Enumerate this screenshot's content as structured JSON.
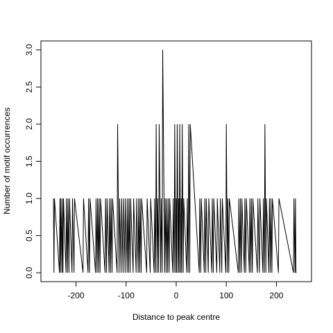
{
  "chart_data": {
    "type": "line",
    "title": "",
    "xlabel": "Distance to peak centre",
    "ylabel": "Number of motif occurrences",
    "xlim": [
      -250,
      250
    ],
    "ylim": [
      0,
      3
    ],
    "x_ticks": [
      -200,
      -100,
      0,
      100,
      200
    ],
    "x_tick_labels": [
      "-200",
      "-100",
      "0",
      "100",
      "200"
    ],
    "y_ticks": [
      0.0,
      0.5,
      1.0,
      1.5,
      2.0,
      2.5,
      3.0
    ],
    "y_tick_labels": [
      "0.0",
      "0.5",
      "1.0",
      "1.5",
      "2.0",
      "2.5",
      "3.0"
    ],
    "grid": false,
    "legend": "none",
    "line_color": "#000000",
    "series": [
      {
        "x_range": [
          -245,
          240
        ],
        "nonzero": [
          [
            -245,
            1
          ],
          [
            -243,
            1
          ],
          [
            -232,
            1
          ],
          [
            -230,
            1
          ],
          [
            -227,
            1
          ],
          [
            -225,
            1
          ],
          [
            -219,
            1
          ],
          [
            -216,
            1
          ],
          [
            -213,
            1
          ],
          [
            -207,
            1
          ],
          [
            -203,
            1
          ],
          [
            -185,
            1
          ],
          [
            -175,
            1
          ],
          [
            -172,
            1
          ],
          [
            -160,
            1
          ],
          [
            -157,
            1
          ],
          [
            -154,
            1
          ],
          [
            -151,
            1
          ],
          [
            -141,
            1
          ],
          [
            -138,
            1
          ],
          [
            -133,
            1
          ],
          [
            -130,
            1
          ],
          [
            -127,
            1
          ],
          [
            -117,
            2
          ],
          [
            -113,
            1
          ],
          [
            -109,
            1
          ],
          [
            -105,
            1
          ],
          [
            -101,
            1
          ],
          [
            -97,
            1
          ],
          [
            -94,
            1
          ],
          [
            -91,
            1
          ],
          [
            -85,
            1
          ],
          [
            -79,
            1
          ],
          [
            -75,
            1
          ],
          [
            -72,
            1
          ],
          [
            -69,
            1
          ],
          [
            -58,
            1
          ],
          [
            -51,
            1
          ],
          [
            -43,
            1
          ],
          [
            -40,
            2
          ],
          [
            -37,
            1
          ],
          [
            -34,
            2
          ],
          [
            -30,
            1
          ],
          [
            -27,
            3
          ],
          [
            -22,
            1
          ],
          [
            -19,
            1
          ],
          [
            -16,
            1
          ],
          [
            -13,
            1
          ],
          [
            -6,
            1
          ],
          [
            -3,
            2
          ],
          [
            0,
            1
          ],
          [
            2,
            2
          ],
          [
            5,
            1
          ],
          [
            7,
            2
          ],
          [
            10,
            1
          ],
          [
            12,
            2
          ],
          [
            15,
            1
          ],
          [
            22,
            1
          ],
          [
            25,
            2
          ],
          [
            28,
            2
          ],
          [
            47,
            1
          ],
          [
            50,
            1
          ],
          [
            57,
            1
          ],
          [
            60,
            1
          ],
          [
            65,
            1
          ],
          [
            72,
            1
          ],
          [
            75,
            1
          ],
          [
            82,
            1
          ],
          [
            88,
            1
          ],
          [
            92,
            1
          ],
          [
            100,
            2
          ],
          [
            103,
            1
          ],
          [
            106,
            1
          ],
          [
            125,
            1
          ],
          [
            128,
            1
          ],
          [
            131,
            1
          ],
          [
            137,
            1
          ],
          [
            140,
            1
          ],
          [
            147,
            1
          ],
          [
            150,
            1
          ],
          [
            153,
            1
          ],
          [
            163,
            1
          ],
          [
            167,
            1
          ],
          [
            174,
            1
          ],
          [
            177,
            2
          ],
          [
            180,
            1
          ],
          [
            186,
            1
          ],
          [
            189,
            1
          ],
          [
            192,
            1
          ],
          [
            205,
            1
          ],
          [
            235,
            1
          ],
          [
            238,
            1
          ]
        ]
      }
    ]
  }
}
